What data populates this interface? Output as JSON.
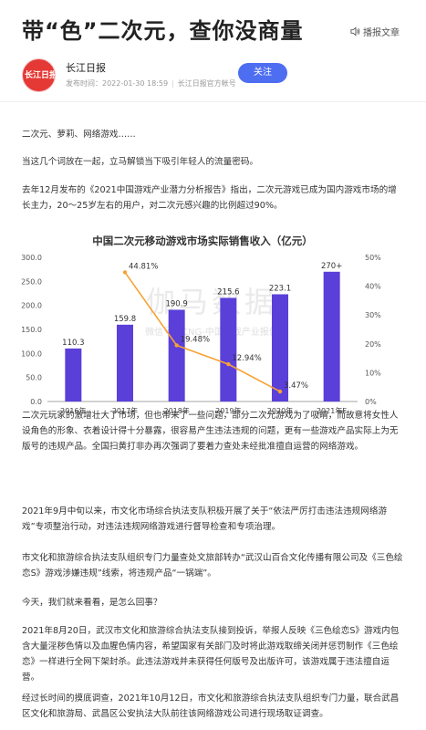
{
  "header": {
    "title": "带“色”二次元，查你没商量",
    "listen_label": "播报文章"
  },
  "author": {
    "avatar_text": "长江日报",
    "name": "长江日报",
    "publish_time": "发布时间：2022-01-30 18:59",
    "account": "长江日报官方帐号",
    "follow_label": "关注"
  },
  "article": {
    "p1": "二次元、萝莉、网络游戏……",
    "p2": "当这几个词放在一起，立马解锁当下吸引年轻人的流量密码。",
    "p3": "去年12月发布的《2021中国游戏产业潜力分析报告》指出，二次元游戏已成为国内游戏市场的增长主力，20～25岁左右的用户，对二次元感兴趣的比例超过90%。",
    "p4": "二次元玩家的激增壮大了市场，但也带来了一些问题，部分二次元游戏为了吸睛，而故意将女性人设角色的形象、衣着设计得十分暴露，很容易产生违法违规的问题，更有一些游戏产品实际上为无版号的违规产品。全国扫黄打非办再次强调了要着力查处未经批准擅自运营的网络游戏。",
    "p5": "2021年9月中旬以来，市文化市场综合执法支队积极开展了关于“依法严厉打击违法违规网络游戏”专项整治行动，对违法违规网络游戏进行督导检查和专项治理。",
    "p6": "市文化和旅游综合执法支队组织专门力量查处文旅部转办“武汉山百合文化传播有限公司及《三色绘恋S》游戏涉嫌违规”线索，将违规产品“一锅端”。",
    "p7": "今天，我们就来看看，是怎么回事？",
    "p8": "2021年8月20日，武汉市文化和旅游综合执法支队接到投诉，举报人反映《三色绘恋S》游戏内包含大量淫秽色情以及血腥色情内容，希望国家有关部门及时将此游戏取缔关闭并惩罚制作《三色绘恋》一样进行全网下架封杀。此违法游戏并未获得任何版号及出版许可，该游戏属于违法擅自运营。",
    "p9": "经过长时间的摸底调查，2021年10月12日，市文化和旅游综合执法支队组织专门力量，联合武昌区文化和旅游局、武昌区公安执法大队前往该网络游戏公司进行现场取证调查。"
  },
  "chart_data": {
    "type": "bar",
    "title": "中国二次元移动游戏市场实际销售收入（亿元）",
    "watermark": "伽马数据",
    "watermark_sub": "微信号：CNG-中国游戏产业报告",
    "categories": [
      "2016年",
      "2017年",
      "2018年",
      "2019年",
      "2020年",
      "2021年E"
    ],
    "values": [
      110.3,
      159.8,
      190.9,
      215.6,
      223.1,
      270
    ],
    "value_labels": [
      "110.3",
      "159.8",
      "190.9",
      "215.6",
      "223.1",
      "270+"
    ],
    "growth": [
      null,
      44.81,
      19.48,
      12.94,
      3.47,
      null
    ],
    "growth_labels": [
      "",
      "44.81%",
      "19.48%",
      "12.94%",
      "3.47%",
      ""
    ],
    "ylim": [
      0,
      300
    ],
    "yticks": [
      "0.0",
      "50.0",
      "100.0",
      "150.0",
      "200.0",
      "250.0",
      "300.0"
    ],
    "y2lim": [
      0,
      50
    ],
    "y2ticks": [
      "0%",
      "10%",
      "20%",
      "30%",
      "40%",
      "50%"
    ],
    "bar_color": "#5b3fd9",
    "line_color": "#f7a234",
    "grid": false
  }
}
